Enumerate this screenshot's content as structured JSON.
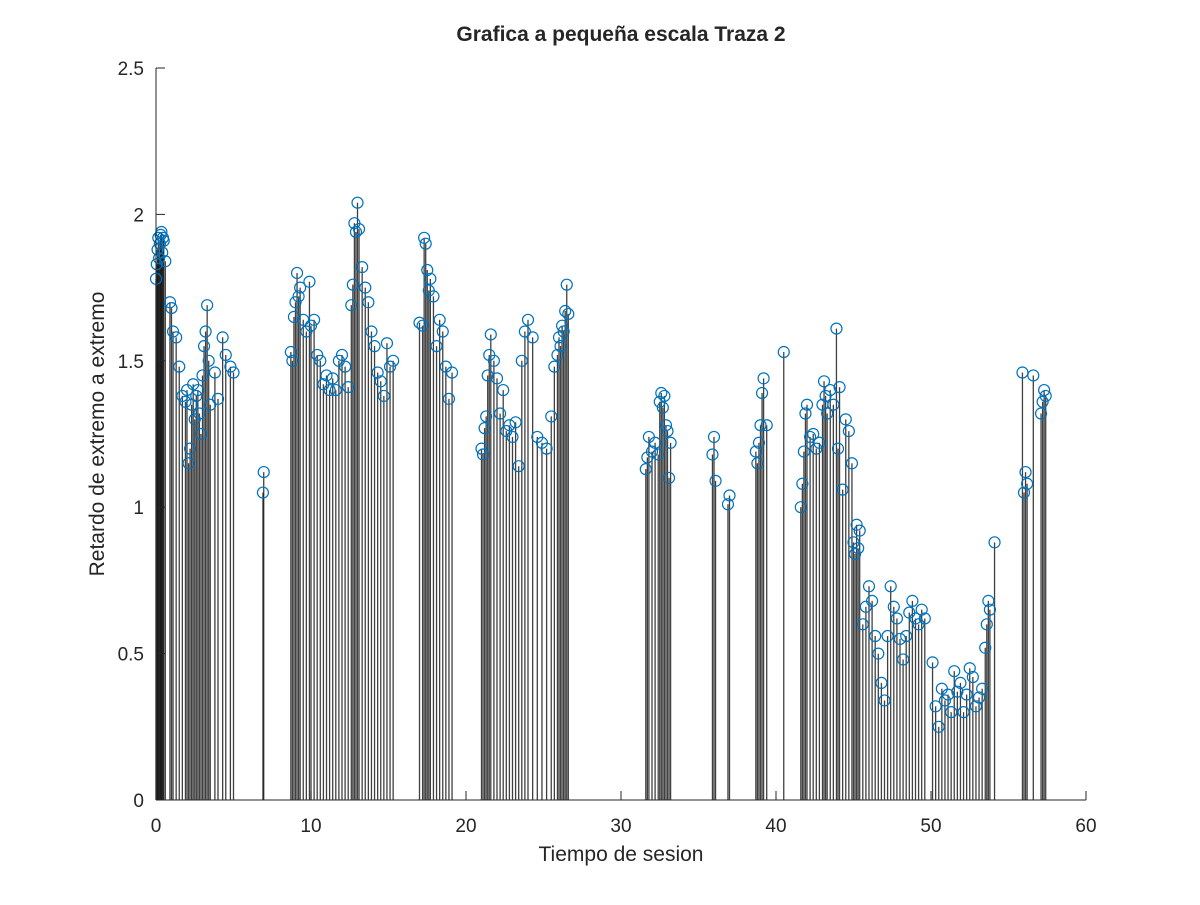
{
  "chart_data": {
    "type": "stem",
    "title": "Grafica a pequeña escala Traza 2",
    "xlabel": "Tiempo de sesion",
    "ylabel": "Retardo de extremo a extremo",
    "xlim": [
      0,
      60
    ],
    "ylim": [
      0,
      2.5
    ],
    "xticks": [
      "0",
      "10",
      "20",
      "30",
      "40",
      "50",
      "60"
    ],
    "yticks": [
      "0",
      "0.5",
      "1",
      "1.5",
      "2",
      "2.5"
    ],
    "grid": false,
    "legend": "none",
    "colors": {
      "stem": "#000000",
      "marker": "#0072BD",
      "axis": "#262626"
    },
    "marker": "circle",
    "series": [
      {
        "x": [
          0.0,
          0.05,
          0.1,
          0.15,
          0.2,
          0.25,
          0.3,
          0.35,
          0.4,
          0.45,
          0.5,
          0.6,
          0.9,
          1.0,
          1.1,
          1.3,
          1.5,
          1.7,
          1.9,
          2.0,
          2.1,
          2.2,
          2.3,
          2.4,
          2.5,
          2.6,
          2.7,
          2.8,
          2.9,
          3.0,
          3.1,
          3.2,
          3.3,
          3.4,
          3.5,
          3.8,
          4.0,
          4.3,
          4.5,
          4.8,
          5.0,
          6.9,
          6.95,
          8.7,
          8.8,
          8.9,
          9.0,
          9.1,
          9.2,
          9.3,
          9.5,
          9.7,
          9.9,
          10.0,
          10.2,
          10.4,
          10.6,
          10.8,
          11.0,
          11.2,
          11.4,
          11.6,
          11.8,
          12.0,
          12.2,
          12.4,
          12.6,
          12.7,
          12.8,
          12.9,
          13.0,
          13.1,
          13.3,
          13.5,
          13.7,
          13.9,
          14.1,
          14.3,
          14.5,
          14.7,
          14.9,
          15.1,
          15.3,
          17.0,
          17.2,
          17.3,
          17.4,
          17.5,
          17.6,
          17.7,
          17.9,
          18.1,
          18.3,
          18.5,
          18.7,
          18.9,
          19.1,
          21.0,
          21.1,
          21.2,
          21.3,
          21.4,
          21.5,
          21.6,
          21.8,
          22.0,
          22.2,
          22.4,
          22.6,
          22.8,
          23.0,
          23.2,
          23.4,
          23.6,
          23.8,
          24.0,
          24.3,
          24.6,
          24.9,
          25.2,
          25.5,
          25.7,
          25.9,
          26.0,
          26.1,
          26.2,
          26.3,
          26.4,
          26.5,
          26.6,
          31.6,
          31.7,
          31.8,
          32.0,
          32.2,
          32.4,
          32.5,
          32.6,
          32.7,
          32.8,
          32.9,
          33.0,
          33.1,
          33.2,
          35.9,
          36.0,
          36.1,
          36.9,
          37.0,
          38.7,
          38.8,
          38.9,
          39.0,
          39.1,
          39.2,
          39.4,
          40.5,
          41.6,
          41.7,
          41.8,
          41.9,
          42.0,
          42.2,
          42.4,
          42.6,
          42.8,
          43.0,
          43.1,
          43.2,
          43.3,
          43.5,
          43.7,
          43.9,
          44.0,
          44.1,
          44.3,
          44.5,
          44.7,
          44.9,
          45.0,
          45.1,
          45.2,
          45.3,
          45.4,
          45.6,
          45.8,
          46.0,
          46.2,
          46.4,
          46.6,
          46.8,
          47.0,
          47.2,
          47.4,
          47.6,
          47.8,
          48.0,
          48.2,
          48.4,
          48.6,
          48.8,
          49.0,
          49.2,
          49.4,
          49.6,
          50.1,
          50.3,
          50.5,
          50.7,
          50.9,
          51.1,
          51.3,
          51.5,
          51.7,
          51.9,
          52.1,
          52.3,
          52.5,
          52.7,
          52.9,
          53.1,
          53.3,
          53.5,
          53.6,
          53.7,
          53.8,
          54.1,
          55.9,
          56.0,
          56.1,
          56.2,
          56.6,
          57.1,
          57.2,
          57.3,
          57.4
        ],
        "y": [
          1.78,
          1.83,
          1.88,
          1.92,
          1.85,
          1.9,
          1.93,
          1.94,
          1.87,
          1.92,
          1.91,
          1.84,
          1.7,
          1.68,
          1.6,
          1.58,
          1.48,
          1.38,
          1.36,
          1.4,
          1.15,
          1.2,
          1.35,
          1.42,
          1.3,
          1.38,
          1.4,
          1.32,
          1.25,
          1.45,
          1.55,
          1.6,
          1.69,
          1.5,
          1.35,
          1.46,
          1.37,
          1.58,
          1.52,
          1.48,
          1.46,
          1.05,
          1.12,
          1.53,
          1.5,
          1.65,
          1.7,
          1.8,
          1.72,
          1.75,
          1.64,
          1.6,
          1.77,
          1.62,
          1.64,
          1.52,
          1.5,
          1.42,
          1.45,
          1.4,
          1.44,
          1.4,
          1.5,
          1.52,
          1.48,
          1.41,
          1.69,
          1.76,
          1.97,
          1.94,
          2.04,
          1.95,
          1.82,
          1.75,
          1.7,
          1.6,
          1.55,
          1.46,
          1.43,
          1.38,
          1.56,
          1.48,
          1.5,
          1.63,
          1.62,
          1.92,
          1.9,
          1.81,
          1.74,
          1.78,
          1.72,
          1.55,
          1.64,
          1.6,
          1.48,
          1.37,
          1.46,
          1.2,
          1.18,
          1.27,
          1.31,
          1.45,
          1.52,
          1.59,
          1.5,
          1.44,
          1.32,
          1.4,
          1.26,
          1.28,
          1.24,
          1.29,
          1.14,
          1.5,
          1.6,
          1.64,
          1.58,
          1.24,
          1.22,
          1.2,
          1.31,
          1.48,
          1.52,
          1.58,
          1.55,
          1.62,
          1.6,
          1.67,
          1.76,
          1.66,
          1.13,
          1.17,
          1.24,
          1.19,
          1.22,
          1.18,
          1.36,
          1.39,
          1.34,
          1.38,
          1.28,
          1.26,
          1.1,
          1.22,
          1.18,
          1.24,
          1.09,
          1.01,
          1.04,
          1.19,
          1.15,
          1.22,
          1.28,
          1.39,
          1.44,
          1.28,
          1.53,
          1.0,
          1.08,
          1.19,
          1.32,
          1.35,
          1.24,
          1.25,
          1.2,
          1.22,
          1.35,
          1.43,
          1.38,
          1.32,
          1.4,
          1.35,
          1.61,
          1.2,
          1.41,
          1.06,
          1.3,
          1.26,
          1.15,
          0.88,
          0.84,
          0.94,
          0.86,
          0.92,
          0.6,
          0.66,
          0.73,
          0.68,
          0.56,
          0.5,
          0.4,
          0.34,
          0.56,
          0.73,
          0.66,
          0.62,
          0.55,
          0.48,
          0.56,
          0.64,
          0.68,
          0.62,
          0.6,
          0.65,
          0.62,
          0.47,
          0.32,
          0.25,
          0.38,
          0.34,
          0.36,
          0.3,
          0.44,
          0.37,
          0.4,
          0.3,
          0.36,
          0.45,
          0.42,
          0.32,
          0.35,
          0.38,
          0.52,
          0.6,
          0.68,
          0.65,
          0.88,
          1.46,
          1.05,
          1.12,
          1.08,
          1.45,
          1.32,
          1.36,
          1.4,
          1.38
        ]
      }
    ]
  }
}
